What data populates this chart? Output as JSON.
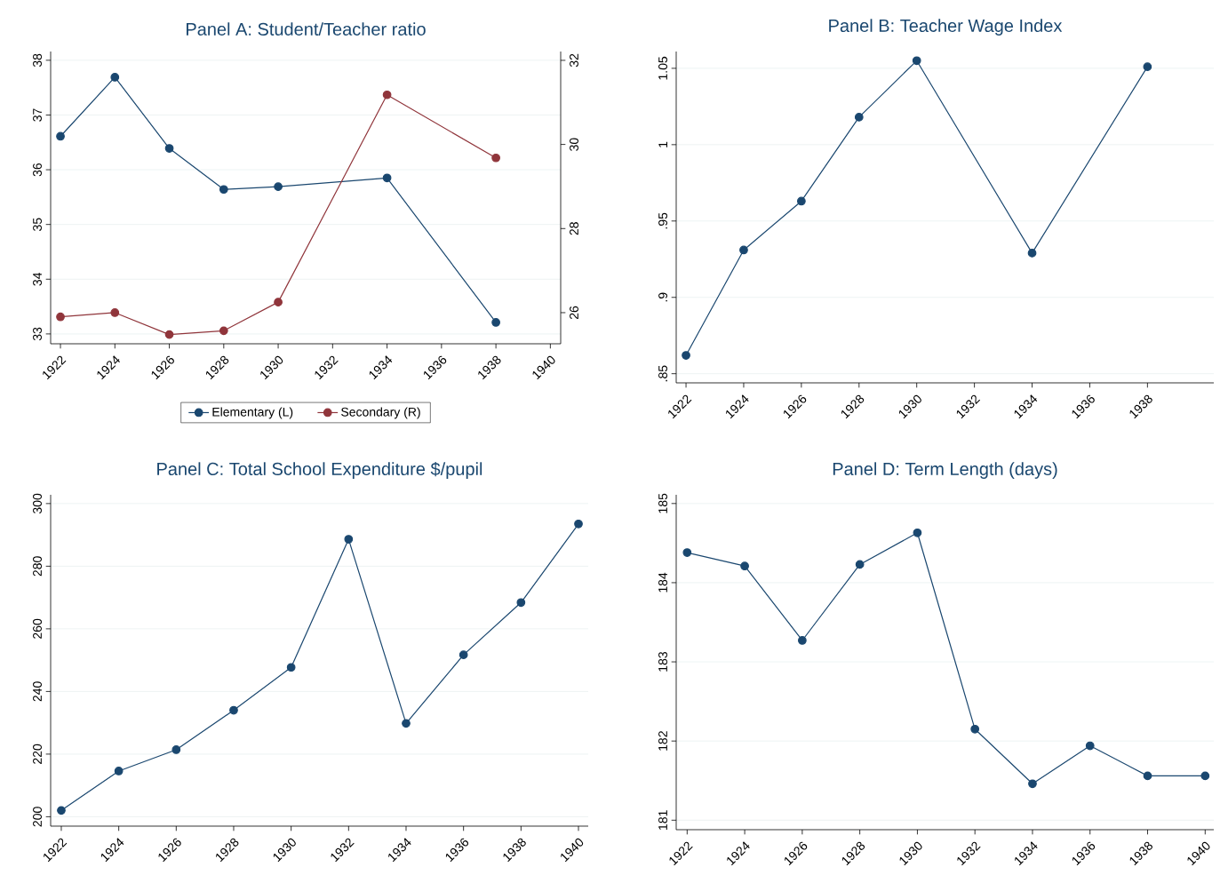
{
  "chart_data": [
    {
      "type": "line",
      "title": "Panel A: Student/Teacher ratio",
      "x": [
        1922,
        1924,
        1926,
        1928,
        1930,
        1934,
        1938
      ],
      "series": [
        {
          "name": "Elementary (L)",
          "color": "#1a476f",
          "values": [
            36.61,
            37.69,
            36.39,
            35.64,
            35.69,
            35.85,
            33.21
          ]
        },
        {
          "name": "Secondary (R)",
          "color": "#90353b",
          "axis": "y2",
          "values": [
            25.9,
            26.0,
            25.48,
            25.57,
            26.25,
            31.18,
            29.68
          ]
        }
      ],
      "xlim": [
        1921.64,
        1940.38
      ],
      "xticks": [
        1922,
        1924,
        1926,
        1928,
        1930,
        1932,
        1934,
        1936,
        1938,
        1940
      ],
      "ylim": [
        32.82,
        38.16
      ],
      "yticks": [
        33,
        34,
        35,
        36,
        37,
        38
      ],
      "y2lim": [
        25.26,
        32.21
      ],
      "y2ticks": [
        26,
        28,
        30,
        32
      ],
      "grid": "y",
      "legend": "bottom",
      "marker": "circle"
    },
    {
      "type": "line",
      "title": "Panel B: Teacher Wage Index",
      "x": [
        1922,
        1924,
        1926,
        1928,
        1930,
        1934,
        1938
      ],
      "series": [
        {
          "color": "#1a476f",
          "values": [
            0.862,
            0.931,
            0.963,
            1.018,
            1.055,
            0.929,
            1.051
          ]
        }
      ],
      "xlim": [
        1921.66,
        1940.3
      ],
      "xticks": [
        1922,
        1924,
        1926,
        1928,
        1930,
        1932,
        1934,
        1936,
        1938
      ],
      "ylim": [
        0.844,
        1.061
      ],
      "yticks": [
        {
          "value": 0.85,
          "label": ".85"
        },
        {
          "value": 0.9,
          "label": ".9"
        },
        {
          "value": 0.95,
          "label": ".95"
        },
        1,
        1.05
      ],
      "grid": "y",
      "marker": "circle"
    },
    {
      "type": "line",
      "title": "Panel C: Total School Expenditure $/pupil",
      "x": [
        1922,
        1924,
        1926,
        1928,
        1930,
        1932,
        1934,
        1936,
        1938,
        1940
      ],
      "series": [
        {
          "color": "#1a476f",
          "values": [
            202,
            214.6,
            221.4,
            234,
            247.7,
            288.6,
            229.8,
            251.7,
            268.4,
            293.5
          ]
        }
      ],
      "xlim": [
        1921.63,
        1940.34
      ],
      "xticks": [
        1922,
        1924,
        1926,
        1928,
        1930,
        1932,
        1934,
        1936,
        1938,
        1940
      ],
      "ylim": [
        197,
        302.8
      ],
      "yticks": [
        200,
        220,
        240,
        260,
        280,
        300
      ],
      "grid": "y",
      "marker": "circle"
    },
    {
      "type": "line",
      "title": "Panel D: Term Length (days)",
      "x": [
        1922,
        1924,
        1926,
        1928,
        1930,
        1932,
        1934,
        1936,
        1938,
        1940
      ],
      "series": [
        {
          "color": "#1a476f",
          "values": [
            184.38,
            184.21,
            183.27,
            184.23,
            184.63,
            182.15,
            181.46,
            181.94,
            181.56,
            181.56
          ]
        }
      ],
      "xlim": [
        1921.62,
        1940.3
      ],
      "xticks": [
        1922,
        1924,
        1926,
        1928,
        1930,
        1932,
        1934,
        1936,
        1938,
        1940
      ],
      "ylim": [
        180.88,
        185.11
      ],
      "yticks": [
        181,
        182,
        183,
        184,
        185
      ],
      "grid": "y",
      "marker": "circle"
    }
  ]
}
